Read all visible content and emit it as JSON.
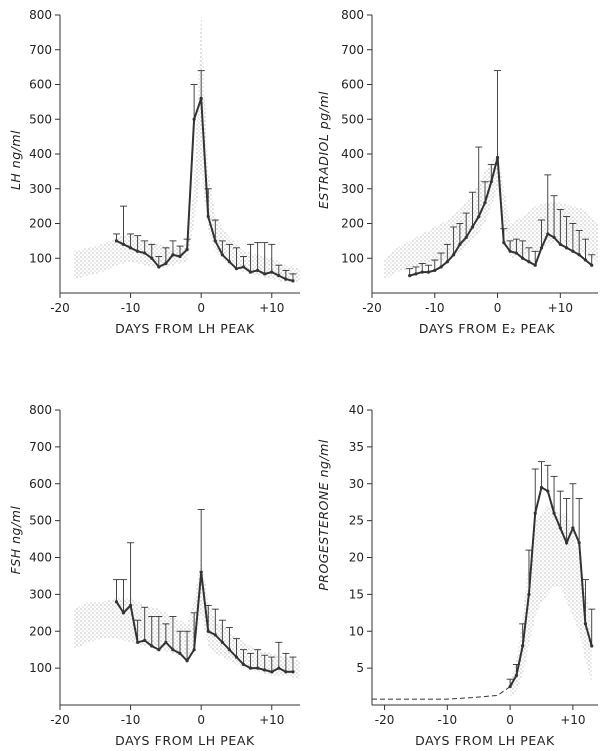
{
  "chart_data": [
    {
      "type": "line",
      "ylabel": "LH ng/ml",
      "xlabel": "DAYS FROM LH PEAK",
      "xlim": [
        -20,
        14
      ],
      "ylim": [
        0,
        800
      ],
      "x_ticks": [
        {
          "v": -20,
          "label": "-20"
        },
        {
          "v": -10,
          "label": "-10"
        },
        {
          "v": 0,
          "label": "0"
        },
        {
          "v": 10,
          "label": "+10"
        }
      ],
      "y_ticks": [
        100,
        200,
        300,
        400,
        500,
        600,
        700,
        800
      ],
      "series": [
        {
          "x": [
            -12,
            -11,
            -10,
            -9,
            -8,
            -7,
            -6,
            -5,
            -4,
            -3,
            -2,
            -1,
            0,
            1,
            2,
            3,
            4,
            5,
            6,
            7,
            8,
            9,
            10,
            11,
            12,
            13
          ],
          "y": [
            150,
            140,
            130,
            120,
            115,
            100,
            75,
            85,
            110,
            105,
            125,
            500,
            560,
            220,
            150,
            110,
            90,
            70,
            75,
            60,
            65,
            55,
            60,
            50,
            40,
            35
          ],
          "err": [
            20,
            110,
            40,
            45,
            35,
            40,
            30,
            45,
            40,
            30,
            30,
            100,
            80,
            80,
            60,
            40,
            50,
            60,
            30,
            80,
            80,
            90,
            80,
            30,
            25,
            20
          ]
        }
      ],
      "band": {
        "x": [
          -18,
          -16,
          -14,
          -12,
          -10,
          -8,
          -6,
          -4,
          -2,
          -1,
          0,
          1,
          2,
          4,
          6,
          8,
          10,
          12,
          14
        ],
        "upper": [
          120,
          130,
          140,
          160,
          170,
          150,
          140,
          130,
          140,
          300,
          800,
          350,
          220,
          160,
          120,
          110,
          100,
          80,
          70
        ],
        "lower": [
          40,
          50,
          60,
          80,
          90,
          80,
          70,
          80,
          90,
          200,
          350,
          180,
          120,
          80,
          60,
          50,
          40,
          30,
          30
        ]
      },
      "dashed": null
    },
    {
      "type": "line",
      "ylabel": "ESTRADIOL pg/ml",
      "xlabel": "DAYS FROM E₂ PEAK",
      "xlim": [
        -20,
        16
      ],
      "ylim": [
        0,
        800
      ],
      "x_ticks": [
        {
          "v": -20,
          "label": "-20"
        },
        {
          "v": -10,
          "label": "-10"
        },
        {
          "v": 0,
          "label": "0"
        },
        {
          "v": 10,
          "label": "+10"
        }
      ],
      "y_ticks": [
        100,
        200,
        300,
        400,
        500,
        600,
        700,
        800
      ],
      "series": [
        {
          "x": [
            -14,
            -13,
            -12,
            -11,
            -10,
            -9,
            -8,
            -7,
            -6,
            -5,
            -4,
            -3,
            -2,
            -1,
            0,
            1,
            2,
            3,
            4,
            5,
            6,
            7,
            8,
            9,
            10,
            11,
            12,
            13,
            14,
            15
          ],
          "y": [
            50,
            55,
            60,
            60,
            65,
            75,
            90,
            110,
            140,
            160,
            190,
            220,
            260,
            320,
            390,
            145,
            120,
            115,
            100,
            90,
            80,
            130,
            170,
            160,
            140,
            130,
            120,
            110,
            95,
            80
          ],
          "err": [
            20,
            20,
            25,
            20,
            30,
            40,
            50,
            80,
            60,
            70,
            100,
            200,
            60,
            50,
            250,
            40,
            30,
            40,
            50,
            40,
            40,
            80,
            170,
            120,
            100,
            90,
            80,
            70,
            60,
            30
          ]
        }
      ],
      "band": {
        "x": [
          -18,
          -16,
          -14,
          -12,
          -10,
          -8,
          -6,
          -4,
          -2,
          0,
          2,
          4,
          6,
          8,
          10,
          12,
          14,
          16
        ],
        "upper": [
          100,
          130,
          150,
          170,
          190,
          210,
          240,
          280,
          350,
          400,
          200,
          220,
          250,
          260,
          260,
          250,
          240,
          200
        ],
        "lower": [
          40,
          60,
          70,
          80,
          90,
          100,
          120,
          150,
          200,
          300,
          100,
          110,
          120,
          140,
          150,
          130,
          110,
          90
        ]
      },
      "dashed": null
    },
    {
      "type": "line",
      "ylabel": "FSH ng/ml",
      "xlabel": "DAYS FROM LH PEAK",
      "xlim": [
        -20,
        14
      ],
      "ylim": [
        0,
        800
      ],
      "x_ticks": [
        {
          "v": -20,
          "label": "-20"
        },
        {
          "v": -10,
          "label": "-10"
        },
        {
          "v": 0,
          "label": "0"
        },
        {
          "v": 10,
          "label": "+10"
        }
      ],
      "y_ticks": [
        100,
        200,
        300,
        400,
        500,
        600,
        700,
        800
      ],
      "series": [
        {
          "x": [
            -12,
            -11,
            -10,
            -9,
            -8,
            -7,
            -6,
            -5,
            -4,
            -3,
            -2,
            -1,
            0,
            1,
            2,
            3,
            4,
            5,
            6,
            7,
            8,
            9,
            10,
            11,
            12,
            13
          ],
          "y": [
            280,
            250,
            270,
            170,
            175,
            160,
            150,
            170,
            150,
            140,
            120,
            150,
            360,
            200,
            190,
            170,
            150,
            130,
            110,
            100,
            100,
            95,
            90,
            100,
            90,
            90
          ],
          "err": [
            60,
            90,
            170,
            60,
            90,
            80,
            90,
            50,
            90,
            60,
            80,
            100,
            170,
            70,
            70,
            60,
            60,
            50,
            40,
            40,
            50,
            40,
            40,
            70,
            50,
            40
          ]
        }
      ],
      "band": {
        "x": [
          -18,
          -16,
          -14,
          -12,
          -10,
          -8,
          -6,
          -4,
          -2,
          -1,
          0,
          1,
          2,
          4,
          6,
          8,
          10,
          12,
          14
        ],
        "upper": [
          260,
          280,
          280,
          290,
          290,
          270,
          260,
          240,
          220,
          280,
          400,
          280,
          230,
          200,
          170,
          150,
          140,
          130,
          120
        ],
        "lower": [
          150,
          170,
          180,
          180,
          170,
          160,
          150,
          140,
          130,
          160,
          250,
          160,
          140,
          120,
          100,
          90,
          80,
          80,
          70
        ]
      },
      "dashed": null
    },
    {
      "type": "line",
      "ylabel": "PROGESTERONE ng/ml",
      "xlabel": "DAYS FROM LH PEAK",
      "xlim": [
        -22,
        14
      ],
      "ylim": [
        0,
        40
      ],
      "x_ticks": [
        {
          "v": -20,
          "label": "-20"
        },
        {
          "v": -10,
          "label": "-10"
        },
        {
          "v": 0,
          "label": "0"
        },
        {
          "v": 10,
          "label": "+10"
        }
      ],
      "y_ticks": [
        5,
        10,
        15,
        20,
        25,
        30,
        35,
        40
      ],
      "series": [
        {
          "x": [
            0,
            1,
            2,
            3,
            4,
            5,
            6,
            7,
            8,
            9,
            10,
            11,
            12,
            13
          ],
          "y": [
            2.5,
            4,
            8,
            15,
            26,
            29.5,
            29,
            26,
            24,
            22,
            24,
            22,
            11,
            8
          ],
          "err": [
            1,
            1.5,
            3,
            6,
            6,
            3.5,
            3.5,
            5,
            5,
            6,
            6,
            6,
            6,
            5
          ]
        }
      ],
      "band": {
        "x": [
          0,
          1,
          2,
          3,
          4,
          5,
          6,
          7,
          8,
          9,
          10,
          11,
          12,
          13
        ],
        "upper": [
          3,
          6,
          12,
          20,
          25,
          26,
          27,
          27,
          26,
          26,
          24,
          20,
          16,
          10
        ],
        "lower": [
          1,
          2,
          4,
          8,
          12,
          14,
          15,
          16,
          16,
          14,
          12,
          10,
          6,
          3
        ]
      },
      "dashed": {
        "x": [
          -22,
          -18,
          -14,
          -10,
          -6,
          -2,
          0
        ],
        "y": [
          0.8,
          0.8,
          0.8,
          0.8,
          1,
          1.3,
          2.5
        ]
      }
    }
  ]
}
